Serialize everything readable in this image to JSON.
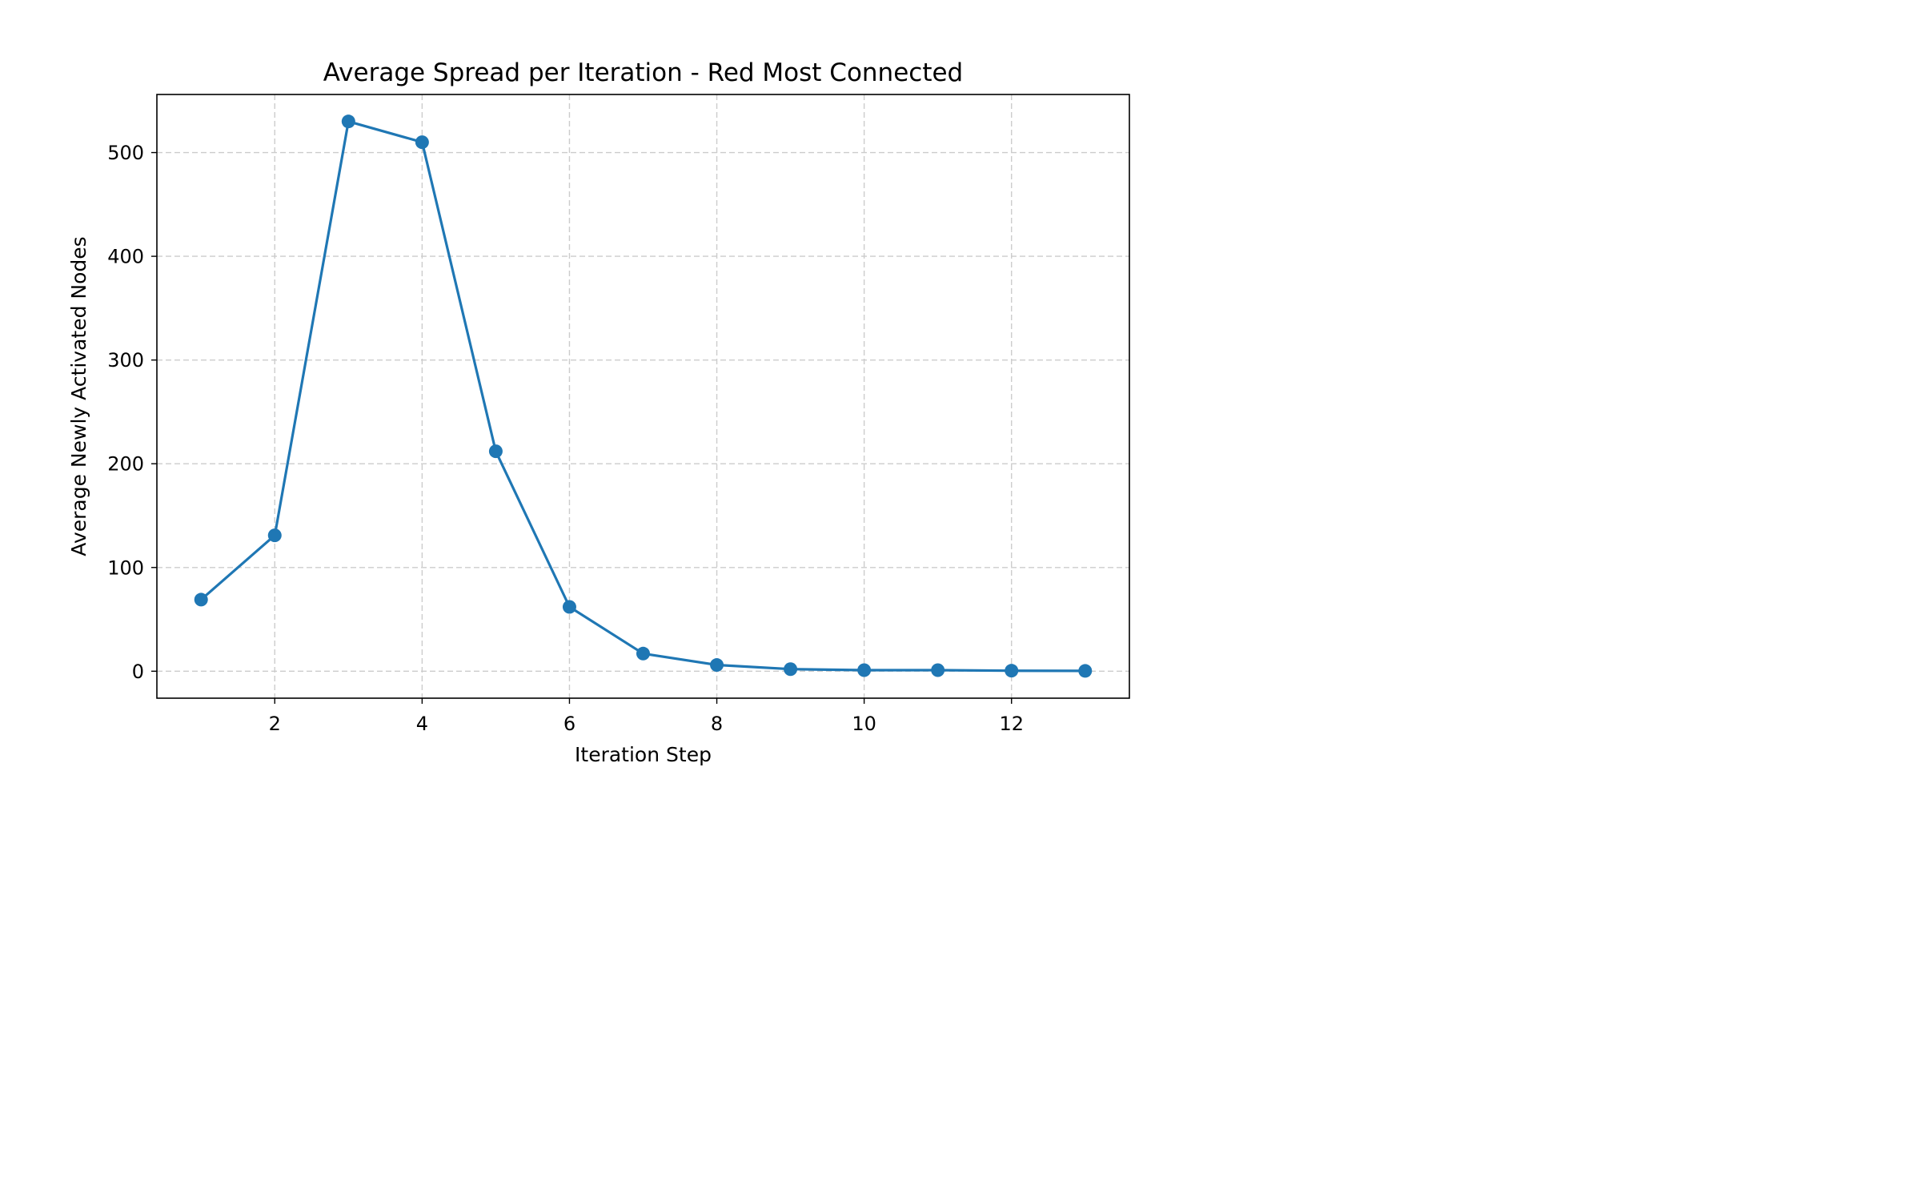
{
  "chart_data": {
    "type": "line",
    "title": "Average Spread per Iteration - Red Most Connected",
    "xlabel": "Iteration Step",
    "ylabel": "Average Newly Activated Nodes",
    "xlim": [
      0.4,
      13.6
    ],
    "ylim": [
      -26,
      556
    ],
    "xticks": [
      2,
      4,
      6,
      8,
      10,
      12
    ],
    "yticks": [
      0,
      100,
      200,
      300,
      400,
      500
    ],
    "grid": true,
    "legend": "none",
    "color": "#1f77b4",
    "series": [
      {
        "x": [
          1,
          2,
          3,
          4,
          5,
          6,
          7,
          8,
          9,
          10,
          11,
          12,
          13
        ],
        "values": [
          69,
          131,
          530,
          510,
          212,
          62,
          17,
          6,
          2,
          1,
          1,
          0.5,
          0.3
        ]
      }
    ]
  }
}
